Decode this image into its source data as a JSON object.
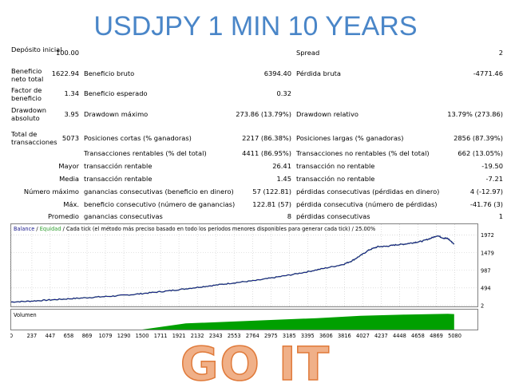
{
  "title": "USDJPY 1 MIN 10 YEARS",
  "banner": "GO IT",
  "stats": {
    "deposito_label": "Depósito inicial",
    "deposito_value": "100.00",
    "spread_label": "Spread",
    "spread_value": "2",
    "beneficio_neto_label": "Beneficio neto total",
    "beneficio_neto_value": "1622.94",
    "beneficio_bruto_label": "Beneficio bruto",
    "beneficio_bruto_value": "6394.40",
    "perdida_bruta_label": "Pérdida bruta",
    "perdida_bruta_value": "-4771.46",
    "factor_label": "Factor de beneficio",
    "factor_value": "1.34",
    "esperado_label": "Beneficio esperado",
    "esperado_value": "0.32",
    "drawdown_abs_label": "Drawdown absoluto",
    "drawdown_abs_value": "3.95",
    "drawdown_max_label": "Drawdown máximo",
    "drawdown_max_value": "273.86 (13.79%)",
    "drawdown_rel_label": "Drawdown relativo",
    "drawdown_rel_value": "13.79% (273.86)",
    "total_label": "Total de transacciones",
    "total_value": "5073",
    "cortas_label": "Posiciones cortas (% ganadoras)",
    "cortas_value": "2217 (86.38%)",
    "largas_label": "Posiciones largas (% ganadoras)",
    "largas_value": "2856 (87.39%)",
    "rentables_label": "Transacciones rentables (% del total)",
    "rentables_value": "4411 (86.95%)",
    "no_rentables_label": "Transacciones no rentables (% del total)",
    "no_rentables_value": "662 (13.05%)",
    "mayor_label": "Mayor",
    "mayor_rentable_label": "transacción rentable",
    "mayor_rentable_value": "26.41",
    "mayor_no_rentable_label": "transacción no rentable",
    "mayor_no_rentable_value": "-19.50",
    "media_label": "Media",
    "media_rentable_label": "transacción rentable",
    "media_rentable_value": "1.45",
    "media_no_rentable_label": "transacción no rentable",
    "media_no_rentable_value": "-7.21",
    "numero_maximo_label": "Número máximo",
    "gan_consec_label": "ganancias consecutivas (beneficio en dinero)",
    "gan_consec_value": "57 (122.81)",
    "perd_consec_label": "pérdidas consecutivas (pérdidas en dinero)",
    "perd_consec_value": "4 (-12.97)",
    "max_label": "Máx.",
    "ben_consec_label": "beneficio consecutivo (número de ganancias)",
    "ben_consec_value": "122.81 (57)",
    "perd_consec2_label": "pérdida consecutiva (número de pérdidas)",
    "perd_consec2_value": "-41.76 (3)",
    "promedio_label": "Promedio",
    "prom_gan_label": "ganancias consecutivas",
    "prom_gan_value": "8",
    "prom_perd_label": "pérdidas consecutivas",
    "prom_perd_value": "1"
  },
  "chart_data": {
    "type": "line",
    "legend": {
      "balance": "Balance",
      "sep1": " / ",
      "equity": "Equidad",
      "sep2": " / ",
      "rest": "Cada tick (el método más preciso basado en todo los períodos menores disponibles para generar cada tick)",
      "sep3": " / ",
      "quality": "25.00%"
    },
    "colors": {
      "balance": "#1a1a8c",
      "equity": "#2e9e2e",
      "volume": "#00a000",
      "grid": "#c8c8c8"
    },
    "y_ticks": [
      1972,
      1479,
      987,
      494,
      2
    ],
    "x_ticks": [
      0,
      237,
      447,
      658,
      869,
      1079,
      1290,
      1500,
      1711,
      1921,
      2132,
      2343,
      2553,
      2764,
      2975,
      3185,
      3395,
      3606,
      3816,
      4027,
      4237,
      4448,
      4658,
      4869,
      5080
    ],
    "xlim": [
      0,
      5340
    ],
    "ylim": [
      -25,
      2100
    ],
    "volume_label": "Volumen",
    "balance_x": [
      0,
      200,
      400,
      600,
      800,
      1000,
      1200,
      1400,
      1600,
      1800,
      2000,
      2200,
      2400,
      2600,
      2800,
      3000,
      3200,
      3400,
      3600,
      3800,
      3900,
      4000,
      4100,
      4200,
      4300,
      4400,
      4500,
      4600,
      4700,
      4800,
      4880,
      4950,
      5000,
      5073
    ],
    "balance_y": [
      100,
      120,
      150,
      180,
      210,
      240,
      270,
      310,
      360,
      410,
      470,
      530,
      590,
      650,
      700,
      780,
      860,
      950,
      1050,
      1150,
      1250,
      1400,
      1560,
      1650,
      1660,
      1700,
      1720,
      1760,
      1800,
      1880,
      1960,
      1890,
      1880,
      1722
    ],
    "volume_x": [
      0,
      1500,
      2000,
      2500,
      3000,
      3500,
      4000,
      4500,
      5000,
      5073
    ],
    "volume_level": [
      0,
      0,
      0.35,
      0.45,
      0.55,
      0.65,
      0.78,
      0.85,
      0.9,
      0.88
    ]
  }
}
